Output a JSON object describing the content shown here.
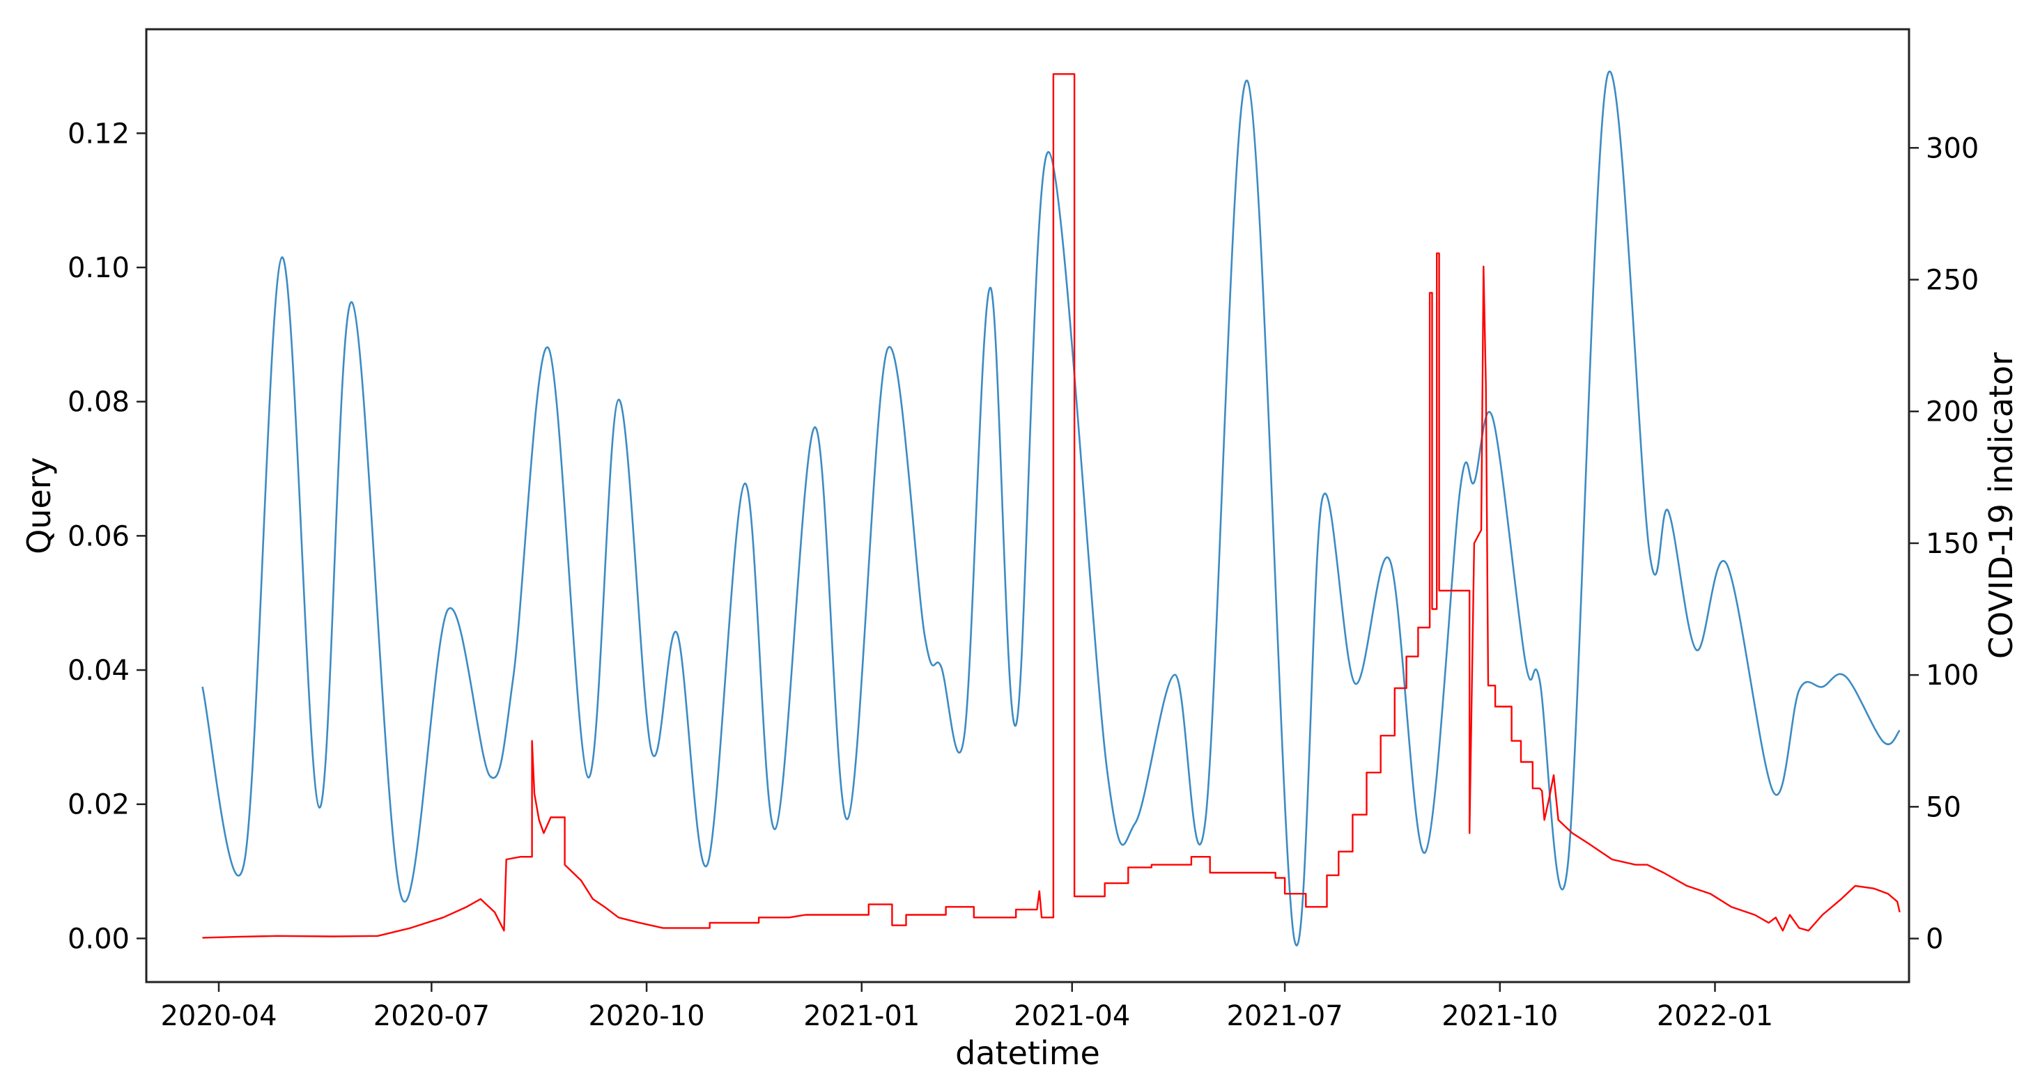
{
  "chart_data": {
    "type": "line",
    "title": "",
    "xlabel": "datetime",
    "ylabel_left": "Query",
    "ylabel_right": "COVID-19 indicator",
    "x_range": [
      "2020-03-01",
      "2022-03-25"
    ],
    "ylim_left": [
      -0.0065,
      0.1355
    ],
    "ylim_right": [
      -16.5,
      345
    ],
    "x_ticks": [
      "2020-04",
      "2020-07",
      "2020-10",
      "2021-01",
      "2021-04",
      "2021-07",
      "2021-10",
      "2022-01"
    ],
    "y_ticks_left": [
      "0.00",
      "0.02",
      "0.04",
      "0.06",
      "0.08",
      "0.10",
      "0.12"
    ],
    "y_ticks_right": [
      "0",
      "50",
      "100",
      "150",
      "200",
      "250",
      "300"
    ],
    "grid": false,
    "legend": false,
    "series": [
      {
        "axis": "left",
        "color": "#3b8bc4",
        "style": "smooth",
        "points": [
          [
            "2020-03-25",
            0.0375
          ],
          [
            "2020-04-12",
            0.0115
          ],
          [
            "2020-04-28",
            0.1015
          ],
          [
            "2020-05-14",
            0.0195
          ],
          [
            "2020-05-28",
            0.0948
          ],
          [
            "2020-06-18",
            0.0063
          ],
          [
            "2020-07-08",
            0.049
          ],
          [
            "2020-07-26",
            0.0242
          ],
          [
            "2020-08-05",
            0.039
          ],
          [
            "2020-08-20",
            0.088
          ],
          [
            "2020-09-06",
            0.024
          ],
          [
            "2020-09-19",
            0.0803
          ],
          [
            "2020-10-03",
            0.028
          ],
          [
            "2020-10-14",
            0.0455
          ],
          [
            "2020-10-27",
            0.011
          ],
          [
            "2020-11-12",
            0.0678
          ],
          [
            "2020-11-25",
            0.0163
          ],
          [
            "2020-12-12",
            0.0762
          ],
          [
            "2020-12-26",
            0.0178
          ],
          [
            "2021-01-12",
            0.0878
          ],
          [
            "2021-01-28",
            0.045
          ],
          [
            "2021-02-04",
            0.0405
          ],
          [
            "2021-02-14",
            0.0305
          ],
          [
            "2021-02-25",
            0.097
          ],
          [
            "2021-03-08",
            0.0318
          ],
          [
            "2021-03-22",
            0.1172
          ],
          [
            "2021-04-16",
            0.025
          ],
          [
            "2021-04-28",
            0.0172
          ],
          [
            "2021-05-15",
            0.0393
          ],
          [
            "2021-05-28",
            0.0175
          ],
          [
            "2021-06-15",
            0.1278
          ],
          [
            "2021-07-05",
            0.0
          ],
          [
            "2021-07-17",
            0.0655
          ],
          [
            "2021-07-31",
            0.038
          ],
          [
            "2021-08-15",
            0.0563
          ],
          [
            "2021-08-30",
            0.0128
          ],
          [
            "2021-09-14",
            0.067
          ],
          [
            "2021-09-20",
            0.068
          ],
          [
            "2021-09-28",
            0.0775
          ],
          [
            "2021-10-12",
            0.041
          ],
          [
            "2021-10-18",
            0.0385
          ],
          [
            "2021-10-30",
            0.0108
          ],
          [
            "2021-11-16",
            0.1286
          ],
          [
            "2021-12-04",
            0.0575
          ],
          [
            "2021-12-12",
            0.0637
          ],
          [
            "2021-12-24",
            0.043
          ],
          [
            "2022-01-06",
            0.0558
          ],
          [
            "2022-01-26",
            0.0218
          ],
          [
            "2022-02-06",
            0.037
          ],
          [
            "2022-02-16",
            0.0375
          ],
          [
            "2022-02-26",
            0.039
          ],
          [
            "2022-03-14",
            0.0293
          ],
          [
            "2022-03-21",
            0.031
          ]
        ]
      },
      {
        "axis": "right",
        "color": "#ff0000",
        "style": "step",
        "points": [
          [
            "2020-03-25",
            0.3
          ],
          [
            "2020-04-10",
            0.7
          ],
          [
            "2020-04-26",
            1
          ],
          [
            "2020-05-20",
            0.8
          ],
          [
            "2020-06-08",
            1
          ],
          [
            "2020-06-22",
            4
          ],
          [
            "2020-07-06",
            8
          ],
          [
            "2020-07-16",
            12
          ],
          [
            "2020-07-22",
            15
          ],
          [
            "2020-07-28",
            10
          ],
          [
            "2020-08-01",
            3
          ],
          [
            "2020-08-02",
            30
          ],
          [
            "2020-08-08",
            31
          ],
          [
            "2020-08-13",
            31
          ],
          [
            "2020-08-13",
            75
          ],
          [
            "2020-08-14",
            55
          ],
          [
            "2020-08-16",
            45
          ],
          [
            "2020-08-18",
            40
          ],
          [
            "2020-08-21",
            46
          ],
          [
            "2020-08-27",
            46
          ],
          [
            "2020-08-27",
            28
          ],
          [
            "2020-09-03",
            22
          ],
          [
            "2020-09-08",
            15
          ],
          [
            "2020-09-13",
            12
          ],
          [
            "2020-09-19",
            8
          ],
          [
            "2020-09-28",
            6
          ],
          [
            "2020-10-08",
            4
          ],
          [
            "2020-10-28",
            4
          ],
          [
            "2020-10-28",
            6
          ],
          [
            "2020-11-18",
            6
          ],
          [
            "2020-11-18",
            8
          ],
          [
            "2020-12-01",
            8
          ],
          [
            "2020-12-08",
            9
          ],
          [
            "2021-01-04",
            9
          ],
          [
            "2021-01-04",
            13
          ],
          [
            "2021-01-14",
            13
          ],
          [
            "2021-01-14",
            5
          ],
          [
            "2021-01-20",
            5
          ],
          [
            "2021-01-20",
            9
          ],
          [
            "2021-02-06",
            9
          ],
          [
            "2021-02-06",
            12
          ],
          [
            "2021-02-18",
            12
          ],
          [
            "2021-02-18",
            8
          ],
          [
            "2021-03-08",
            8
          ],
          [
            "2021-03-08",
            11
          ],
          [
            "2021-03-17",
            11
          ],
          [
            "2021-03-18",
            18
          ],
          [
            "2021-03-19",
            8
          ],
          [
            "2021-03-24",
            8
          ],
          [
            "2021-03-24",
            328
          ],
          [
            "2021-04-02",
            328
          ],
          [
            "2021-04-02",
            16
          ],
          [
            "2021-04-15",
            16
          ],
          [
            "2021-04-15",
            21
          ],
          [
            "2021-04-25",
            21
          ],
          [
            "2021-04-25",
            27
          ],
          [
            "2021-05-05",
            27
          ],
          [
            "2021-05-05",
            28
          ],
          [
            "2021-05-22",
            28
          ],
          [
            "2021-05-22",
            31
          ],
          [
            "2021-05-30",
            31
          ],
          [
            "2021-05-30",
            25
          ],
          [
            "2021-06-27",
            25
          ],
          [
            "2021-06-27",
            23
          ],
          [
            "2021-07-01",
            23
          ],
          [
            "2021-07-01",
            17
          ],
          [
            "2021-07-10",
            17
          ],
          [
            "2021-07-10",
            12
          ],
          [
            "2021-07-19",
            12
          ],
          [
            "2021-07-19",
            24
          ],
          [
            "2021-07-24",
            24
          ],
          [
            "2021-07-24",
            33
          ],
          [
            "2021-07-30",
            33
          ],
          [
            "2021-07-30",
            47
          ],
          [
            "2021-08-05",
            47
          ],
          [
            "2021-08-05",
            63
          ],
          [
            "2021-08-11",
            63
          ],
          [
            "2021-08-11",
            77
          ],
          [
            "2021-08-17",
            77
          ],
          [
            "2021-08-17",
            95
          ],
          [
            "2021-08-22",
            95
          ],
          [
            "2021-08-22",
            107
          ],
          [
            "2021-08-27",
            107
          ],
          [
            "2021-08-27",
            118
          ],
          [
            "2021-09-01",
            118
          ],
          [
            "2021-09-01",
            245
          ],
          [
            "2021-09-02",
            245
          ],
          [
            "2021-09-02",
            125
          ],
          [
            "2021-09-04",
            125
          ],
          [
            "2021-09-04",
            260
          ],
          [
            "2021-09-05",
            260
          ],
          [
            "2021-09-05",
            132
          ],
          [
            "2021-09-18",
            132
          ],
          [
            "2021-09-18",
            40
          ],
          [
            "2021-09-20",
            150
          ],
          [
            "2021-09-23",
            155
          ],
          [
            "2021-09-24",
            255
          ],
          [
            "2021-09-25",
            210
          ],
          [
            "2021-09-26",
            96
          ],
          [
            "2021-09-29",
            96
          ],
          [
            "2021-09-29",
            88
          ],
          [
            "2021-10-06",
            88
          ],
          [
            "2021-10-06",
            75
          ],
          [
            "2021-10-10",
            75
          ],
          [
            "2021-10-10",
            67
          ],
          [
            "2021-10-15",
            67
          ],
          [
            "2021-10-15",
            57
          ],
          [
            "2021-10-18",
            57
          ],
          [
            "2021-10-19",
            56
          ],
          [
            "2021-10-20",
            45
          ],
          [
            "2021-10-22",
            53
          ],
          [
            "2021-10-24",
            62
          ],
          [
            "2021-10-26",
            45
          ],
          [
            "2021-11-01",
            40
          ],
          [
            "2021-11-08",
            36
          ],
          [
            "2021-11-18",
            30
          ],
          [
            "2021-11-28",
            28
          ],
          [
            "2021-12-03",
            28
          ],
          [
            "2021-12-10",
            25
          ],
          [
            "2021-12-20",
            20
          ],
          [
            "2021-12-30",
            17
          ],
          [
            "2022-01-08",
            12
          ],
          [
            "2022-01-18",
            9
          ],
          [
            "2022-01-24",
            6
          ],
          [
            "2022-01-27",
            8
          ],
          [
            "2022-01-30",
            3
          ],
          [
            "2022-02-02",
            9
          ],
          [
            "2022-02-06",
            4
          ],
          [
            "2022-02-10",
            3
          ],
          [
            "2022-02-16",
            9
          ],
          [
            "2022-02-24",
            15
          ],
          [
            "2022-03-02",
            20
          ],
          [
            "2022-03-10",
            19
          ],
          [
            "2022-03-16",
            17
          ],
          [
            "2022-03-20",
            14
          ],
          [
            "2022-03-21",
            10
          ]
        ]
      }
    ]
  }
}
